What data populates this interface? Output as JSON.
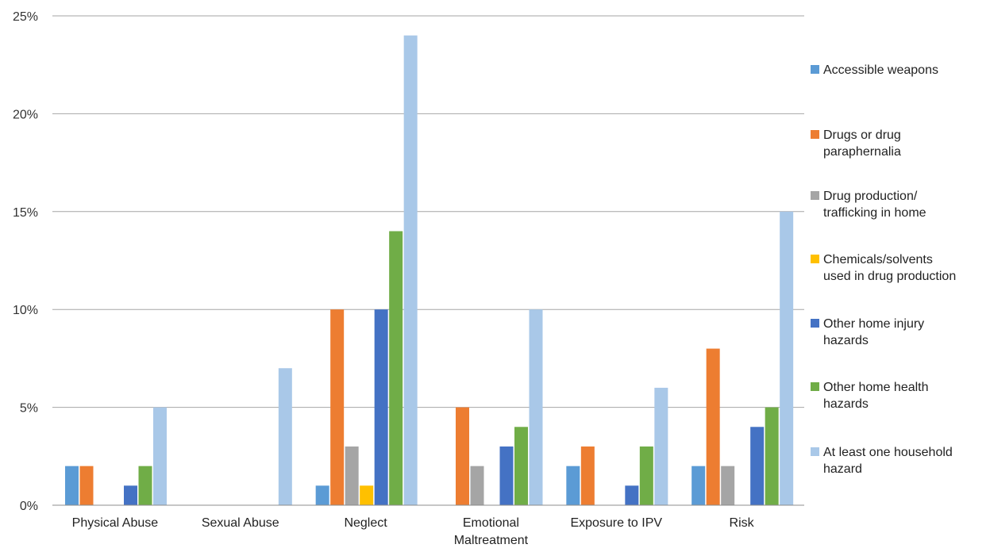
{
  "chart_data": {
    "type": "bar",
    "categories": [
      "Physical Abuse",
      "Sexual Abuse",
      "Neglect",
      "Emotional\nMaltreatment",
      "Exposure to IPV",
      "Risk"
    ],
    "ylim": [
      0,
      25
    ],
    "yticks": [
      "0%",
      "5%",
      "10%",
      "15%",
      "20%",
      "25%"
    ],
    "grid": true,
    "legend_position": "right",
    "series": [
      {
        "name": "Accessible weapons",
        "color": "#5b9bd5",
        "values": [
          2,
          0,
          1,
          0,
          2,
          2
        ]
      },
      {
        "name": "Drugs or drug\nparaphernalia",
        "color": "#ed7d31",
        "values": [
          2,
          0,
          10,
          5,
          3,
          8
        ]
      },
      {
        "name": "Drug production/\ntrafficking in home",
        "color": "#a5a5a5",
        "values": [
          0,
          0,
          3,
          2,
          0,
          2
        ]
      },
      {
        "name": "Chemicals/solvents\nused in drug production",
        "color": "#ffc000",
        "values": [
          0,
          0,
          1,
          0,
          0,
          0
        ]
      },
      {
        "name": "Other home injury\nhazards",
        "color": "#4472c4",
        "values": [
          1,
          0,
          10,
          3,
          1,
          4
        ]
      },
      {
        "name": "Other home health\nhazards",
        "color": "#70ad47",
        "values": [
          2,
          0,
          14,
          4,
          3,
          5
        ]
      },
      {
        "name": "At least one household\nhazard",
        "color": "#a9c8e8",
        "values": [
          5,
          7,
          24,
          10,
          6,
          15
        ]
      }
    ]
  }
}
